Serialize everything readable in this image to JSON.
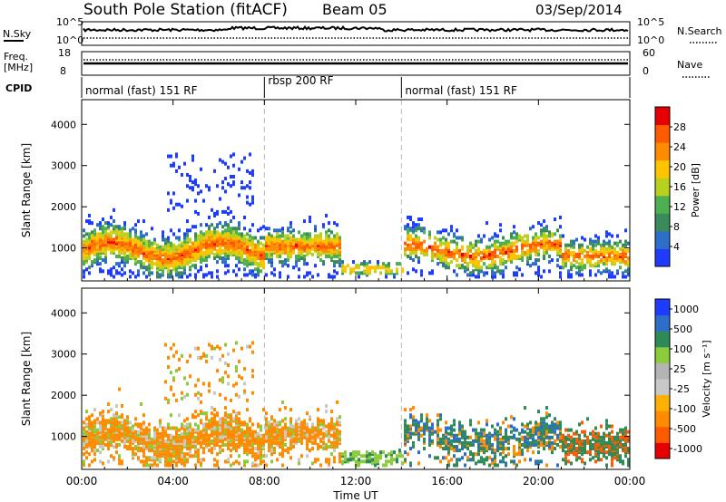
{
  "header": {
    "title": "South Pole Station (fitACF)",
    "beam": "Beam 05",
    "date": "03/Sep/2014"
  },
  "top_panels": {
    "nsky_label": "N.Sky",
    "nsky_ticks": [
      "10^5",
      "10^0"
    ],
    "nsearch_label": "N.Search",
    "nsearch_ticks": [
      "10^5",
      "10^0"
    ],
    "freq_label_1": "Freq.",
    "freq_label_2": "[MHz]",
    "freq_ticks": [
      "18",
      "8"
    ],
    "nave_label": "Nave",
    "nave_ticks": [
      "60",
      "0"
    ],
    "cpid_label": "CPID"
  },
  "cpid_segments": [
    {
      "start_hour": 0,
      "end_hour": 8,
      "label": "normal (fast) 151 RF"
    },
    {
      "start_hour": 8,
      "end_hour": 14,
      "label": "rbsp 200 RF"
    },
    {
      "start_hour": 14,
      "end_hour": 24,
      "label": "normal (fast) 151 RF"
    }
  ],
  "colors": {
    "power": [
      "#1e3cff",
      "#2d6ec8",
      "#3a8a5a",
      "#4caf50",
      "#b8d01e",
      "#ffc400",
      "#ff8c00",
      "#ff5a00",
      "#e60000"
    ],
    "velocity": [
      "#e60000",
      "#ff5a00",
      "#ff8c00",
      "#ffb000",
      "#c8c8c8",
      "#b4b4b4",
      "#8ccc3c",
      "#2e8b57",
      "#2d6ec8",
      "#1e3cff"
    ]
  },
  "chart_data": [
    {
      "type": "heatmap",
      "name": "power",
      "ylabel": "Slant Range [km]",
      "y_ticks": [
        "1000",
        "2000",
        "3000",
        "4000"
      ],
      "ylim": [
        200,
        4600
      ],
      "xlim_hours": [
        0,
        24
      ],
      "colorbar_label": "Power [dB]",
      "colorbar_ticks": [
        "4",
        "8",
        "12",
        "16",
        "20",
        "24",
        "28"
      ],
      "colorbar_range": [
        0,
        32
      ]
    },
    {
      "type": "heatmap",
      "name": "velocity",
      "ylabel": "Slant Range [km]",
      "y_ticks": [
        "1000",
        "2000",
        "3000",
        "4000"
      ],
      "ylim": [
        200,
        4600
      ],
      "xlim_hours": [
        0,
        24
      ],
      "xlabel": "Time UT",
      "x_ticks": [
        "00:00",
        "04:00",
        "08:00",
        "12:00",
        "16:00",
        "20:00",
        "00:00"
      ],
      "colorbar_label": "Velocity [m s⁻¹]",
      "colorbar_ticks": [
        "1000",
        "500",
        "100",
        "25",
        "-25",
        "-100",
        "-500",
        "-1000"
      ]
    }
  ]
}
